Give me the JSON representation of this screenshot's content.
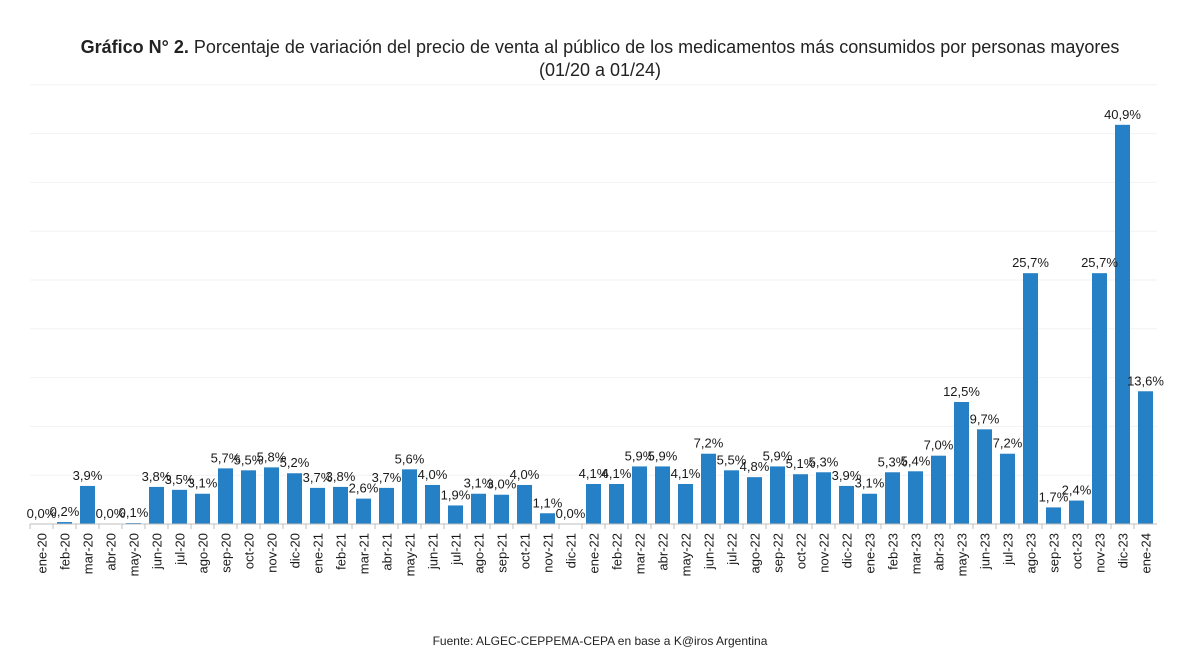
{
  "title_bold": "Gráfico N° 2.",
  "title_rest": " Porcentaje de variación del precio de venta al público de los medicamentos más consumidos por personas mayores",
  "title_line2": "(01/20 a 01/24)",
  "source": "Fuente: ALGEC-CEPPEMA-CEPA en base a K@iros Argentina",
  "bar_color": "#2680c5",
  "chart_data": {
    "type": "bar",
    "title": "Porcentaje de variación del precio de venta al público de los medicamentos más consumidos por personas mayores (01/20 a 01/24)",
    "xlabel": "",
    "ylabel": "",
    "ylim": [
      0,
      45
    ],
    "categories": [
      "ene-20",
      "feb-20",
      "mar-20",
      "abr-20",
      "may-20",
      "jun-20",
      "jul-20",
      "ago-20",
      "sep-20",
      "oct-20",
      "nov-20",
      "dic-20",
      "ene-21",
      "feb-21",
      "mar-21",
      "abr-21",
      "may-21",
      "jun-21",
      "jul-21",
      "ago-21",
      "sep-21",
      "oct-21",
      "nov-21",
      "dic-21",
      "ene-22",
      "feb-22",
      "mar-22",
      "abr-22",
      "may-22",
      "jun-22",
      "jul-22",
      "ago-22",
      "sep-22",
      "oct-22",
      "nov-22",
      "dic-22",
      "ene-23",
      "feb-23",
      "mar-23",
      "abr-23",
      "may-23",
      "jun-23",
      "jul-23",
      "ago-23",
      "sep-23",
      "oct-23",
      "nov-23",
      "dic-23",
      "ene-24"
    ],
    "values": [
      0.0,
      0.2,
      3.9,
      0.0,
      0.1,
      3.8,
      3.5,
      3.1,
      5.7,
      5.5,
      5.8,
      5.2,
      3.7,
      3.8,
      2.6,
      3.7,
      5.6,
      4.0,
      1.9,
      3.1,
      3.0,
      4.0,
      1.1,
      0.0,
      4.1,
      4.1,
      5.9,
      5.9,
      4.1,
      7.2,
      5.5,
      4.8,
      5.9,
      5.1,
      5.3,
      3.9,
      3.1,
      5.3,
      5.4,
      7.0,
      12.5,
      9.7,
      7.2,
      25.7,
      1.7,
      2.4,
      25.7,
      40.9,
      13.6
    ],
    "labels": [
      "0,0%",
      "0,2%",
      "3,9%",
      "0,0%",
      "0,1%",
      "3,8%",
      "3,5%",
      "3,1%",
      "5,7%",
      "5,5%",
      "5,8%",
      "5,2%",
      "3,7%",
      "3,8%",
      "2,6%",
      "3,7%",
      "5,6%",
      "4,0%",
      "1,9%",
      "3,1%",
      "3,0%",
      "4,0%",
      "1,1%",
      "0,0%",
      "4,1%",
      "4,1%",
      "5,9%",
      "5,9%",
      "4,1%",
      "7,2%",
      "5,5%",
      "4,8%",
      "5,9%",
      "5,1%",
      "5,3%",
      "3,9%",
      "3,1%",
      "5,3%",
      "5,4%",
      "7,0%",
      "12,5%",
      "9,7%",
      "7,2%",
      "25,7%",
      "1,7%",
      "2,4%",
      "25,7%",
      "40,9%",
      "13,6%"
    ]
  }
}
